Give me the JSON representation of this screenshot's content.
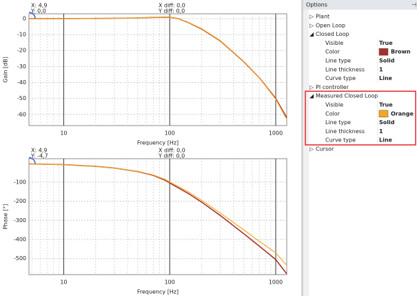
{
  "chart_data": [
    {
      "type": "line",
      "ylabel": "Gain [dB]",
      "xlabel": "Frequency [Hz]",
      "xscale": "log",
      "cursor": {
        "x": "X: 4,9",
        "y": "Y: 0,0",
        "xdiff": "X diff: 0,0",
        "ydiff": "Y diff: 0,0"
      },
      "xlim": [
        4.7,
        1270
      ],
      "xticks": [
        10,
        100,
        1000
      ],
      "ylim": [
        -67,
        3
      ],
      "yticks": [
        0,
        -10,
        -20,
        -30,
        -40,
        -50,
        -60
      ],
      "grid": true,
      "x": [
        4.7,
        10,
        20,
        30,
        50,
        70,
        90,
        100,
        120,
        150,
        200,
        300,
        500,
        700,
        1000,
        1270
      ],
      "series": [
        {
          "name": "Closed Loop",
          "color": "#a5312a",
          "values": [
            0,
            0,
            0.1,
            0.2,
            0.4,
            0.7,
            0.9,
            0.8,
            0,
            -2.5,
            -6.5,
            -14,
            -27,
            -37,
            -50,
            -62
          ]
        },
        {
          "name": "Measured Closed Loop",
          "color": "#f5a623",
          "values": [
            0,
            0,
            0.1,
            0.2,
            0.4,
            0.7,
            0.9,
            0.8,
            0,
            -2.4,
            -6.3,
            -13.8,
            -26.8,
            -37,
            -50.5,
            -63
          ]
        }
      ]
    },
    {
      "type": "line",
      "ylabel": "Phase [°]",
      "xlabel": "Frequency [Hz]",
      "xscale": "log",
      "cursor": {
        "x": "X: 4,9",
        "y": "Y: -4,7",
        "xdiff": "X diff: 0,0",
        "ydiff": "Y diff: 0,0"
      },
      "xlim": [
        4.7,
        1270
      ],
      "xticks": [
        10,
        100,
        1000
      ],
      "ylim": [
        -584,
        22
      ],
      "yticks": [
        -100,
        -200,
        -300,
        -400,
        -500
      ],
      "grid": true,
      "x": [
        4.7,
        10,
        20,
        30,
        50,
        70,
        90,
        100,
        120,
        150,
        200,
        300,
        500,
        700,
        1000,
        1270
      ],
      "series": [
        {
          "name": "Closed Loop",
          "color": "#a5312a",
          "values": [
            -5,
            -9,
            -18,
            -27,
            -45,
            -65,
            -90,
            -105,
            -130,
            -160,
            -205,
            -275,
            -370,
            -435,
            -505,
            -580
          ]
        },
        {
          "name": "Measured Closed Loop",
          "color": "#f5a623",
          "values": [
            -5,
            -9,
            -18,
            -27,
            -44,
            -63,
            -86,
            -100,
            -123,
            -152,
            -195,
            -262,
            -350,
            -410,
            -470,
            -535
          ]
        }
      ]
    }
  ],
  "options": {
    "title": "Options",
    "items": [
      {
        "label": "Plant"
      },
      {
        "label": "Open Loop"
      },
      {
        "label": "Closed Loop",
        "properties": [
          {
            "name": "Visible",
            "value": "True"
          },
          {
            "name": "Color",
            "value": "Brown",
            "swatch": "#a5312a"
          },
          {
            "name": "Line type",
            "value": "Solid"
          },
          {
            "name": "Line thickness",
            "value": "1"
          },
          {
            "name": "Curve type",
            "value": "Line"
          }
        ]
      },
      {
        "label": "PI controller"
      },
      {
        "label": "Measured Closed Loop",
        "highlighted": true,
        "properties": [
          {
            "name": "Visible",
            "value": "True"
          },
          {
            "name": "Color",
            "value": "Orange",
            "swatch": "#f5a623"
          },
          {
            "name": "Line type",
            "value": "Solid"
          },
          {
            "name": "Line thickness",
            "value": "1"
          },
          {
            "name": "Curve type",
            "value": "Line"
          }
        ]
      },
      {
        "label": "Cursor"
      }
    ]
  }
}
